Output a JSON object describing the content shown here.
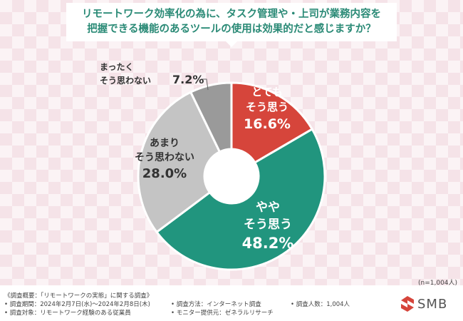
{
  "title": {
    "line1": "リモートワーク効率化の為に、タスク管理や・上司が業務内容を",
    "line2": "把握できる機能のあるツールの使用は効果的だと感じますか？"
  },
  "chart_data": {
    "type": "pie",
    "variant": "donut",
    "start": "top, clockwise",
    "slices": [
      {
        "label": [
          "とても",
          "そう思う"
        ],
        "value": 16.6,
        "display": "16.6%",
        "color": "#d6453b",
        "label_color": "#ffffff"
      },
      {
        "label": [
          "やや",
          "そう思う"
        ],
        "value": 48.2,
        "display": "48.2%",
        "color": "#21957e",
        "label_color": "#ffffff"
      },
      {
        "label": [
          "あまり",
          "そう思わない"
        ],
        "value": 28.0,
        "display": "28.0%",
        "color": "#c4c4c4",
        "label_color": "#333333"
      },
      {
        "label": [
          "まったく",
          "そう思わない"
        ],
        "value": 7.2,
        "display": "7.2%",
        "color": "#9a9a9a",
        "label_color": "#333333"
      }
    ]
  },
  "sample_note": "(n=1,004人)",
  "footer": {
    "overview": "《調査概要：「リモートワークの実態」に関する調査》",
    "period": "• 調査期間：2024年2月7日(水)～2024年2月8日(木)",
    "target": "• 調査対象：リモートワーク経験のある従業員",
    "method": "• 調査方法：インターネット調査",
    "provider": "• モニター提供元：ゼネラルリサーチ",
    "count": "• 調査人数：1,004人"
  },
  "logo": {
    "text": "SMB",
    "icon": "smb-logo-icon",
    "color": "#d6453b"
  }
}
